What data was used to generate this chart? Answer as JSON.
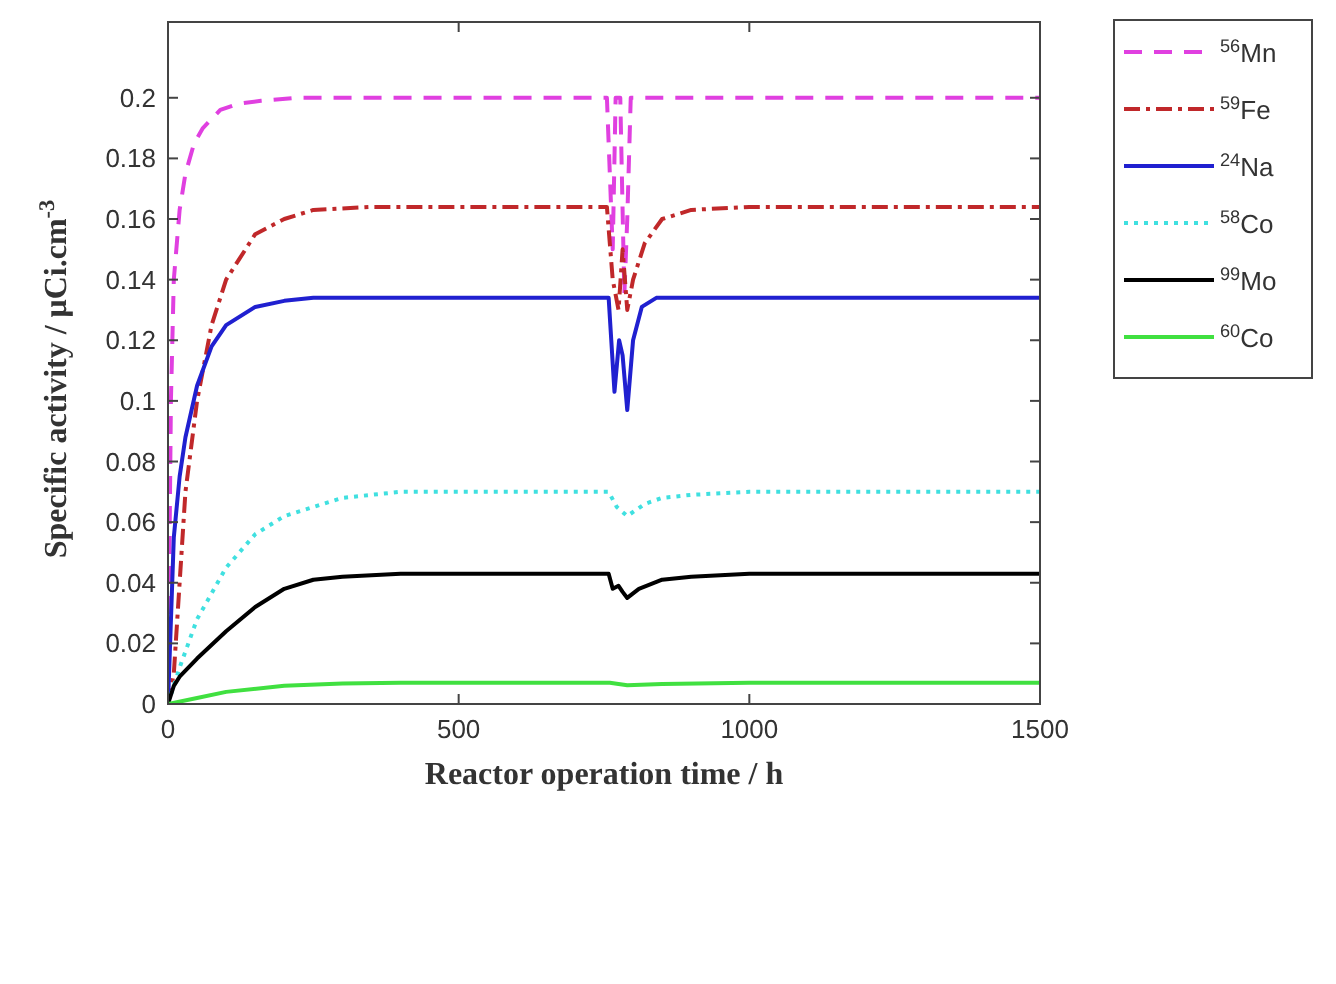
{
  "chart_data": {
    "type": "line",
    "xlabel": "Reactor operation time / h",
    "ylabel": "Specific activity / μCi.cm$^{-3}$",
    "xlim": [
      0,
      1500
    ],
    "xticks": [
      0,
      500,
      1000,
      1500
    ],
    "ylim": [
      0,
      0.225
    ],
    "yticks": [
      0,
      0.02,
      0.04,
      0.06,
      0.08,
      0.1,
      0.12,
      0.14,
      0.16,
      0.18,
      0.2
    ],
    "grid": false,
    "legend": "top right",
    "series": [
      {
        "name": "$^{56}$Mn",
        "color": "#e040e0",
        "line_style": "dashed",
        "x": [
          0,
          5,
          10,
          20,
          30,
          45,
          60,
          90,
          120,
          160,
          220,
          300,
          500,
          755,
          765,
          770,
          778,
          785,
          790,
          796,
          1000,
          1500
        ],
        "values": [
          0,
          0.1,
          0.14,
          0.163,
          0.175,
          0.185,
          0.19,
          0.196,
          0.198,
          0.199,
          0.2,
          0.2,
          0.2,
          0.2,
          0.15,
          0.2,
          0.2,
          0.135,
          0.16,
          0.2,
          0.2,
          0.2
        ]
      },
      {
        "name": "$^{59}$Fe",
        "color": "#c0282a",
        "line_style": "dashdot",
        "x": [
          0,
          10,
          20,
          30,
          50,
          75,
          100,
          150,
          200,
          250,
          350,
          500,
          755,
          765,
          775,
          782,
          790,
          800,
          820,
          850,
          900,
          1000,
          1500
        ],
        "values": [
          0,
          0.01,
          0.04,
          0.07,
          0.1,
          0.125,
          0.14,
          0.155,
          0.16,
          0.163,
          0.164,
          0.164,
          0.164,
          0.14,
          0.13,
          0.15,
          0.13,
          0.14,
          0.152,
          0.16,
          0.163,
          0.164,
          0.164
        ]
      },
      {
        "name": "$^{24}$Na",
        "color": "#2020d0",
        "line_style": "solid",
        "x": [
          0,
          10,
          20,
          30,
          50,
          75,
          100,
          150,
          200,
          250,
          350,
          500,
          758,
          768,
          776,
          782,
          790,
          800,
          815,
          840,
          1000,
          1500
        ],
        "values": [
          0,
          0.055,
          0.075,
          0.088,
          0.105,
          0.118,
          0.125,
          0.131,
          0.133,
          0.134,
          0.134,
          0.134,
          0.134,
          0.103,
          0.12,
          0.115,
          0.097,
          0.12,
          0.131,
          0.134,
          0.134,
          0.134
        ]
      },
      {
        "name": "$^{58}$Co",
        "color": "#40e0e0",
        "line_style": "dotted",
        "x": [
          0,
          20,
          50,
          100,
          150,
          200,
          300,
          400,
          500,
          758,
          772,
          790,
          820,
          850,
          900,
          1000,
          1500
        ],
        "values": [
          0,
          0.012,
          0.028,
          0.045,
          0.056,
          0.062,
          0.068,
          0.07,
          0.07,
          0.07,
          0.065,
          0.062,
          0.066,
          0.068,
          0.069,
          0.07,
          0.07
        ]
      },
      {
        "name": "$^{99}$Mo",
        "color": "#000000",
        "line_style": "solid",
        "x": [
          0,
          10,
          20,
          50,
          100,
          150,
          200,
          250,
          300,
          400,
          500,
          758,
          765,
          775,
          782,
          790,
          810,
          850,
          900,
          1000,
          1500
        ],
        "values": [
          0,
          0.006,
          0.009,
          0.015,
          0.024,
          0.032,
          0.038,
          0.041,
          0.042,
          0.043,
          0.043,
          0.043,
          0.038,
          0.039,
          0.037,
          0.035,
          0.038,
          0.041,
          0.042,
          0.043,
          0.043
        ]
      },
      {
        "name": "$^{60}$Co",
        "color": "#40e040",
        "line_style": "solid",
        "x": [
          0,
          50,
          100,
          200,
          300,
          400,
          500,
          760,
          790,
          850,
          1000,
          1500
        ],
        "values": [
          0,
          0.002,
          0.004,
          0.006,
          0.0068,
          0.007,
          0.007,
          0.007,
          0.0062,
          0.0066,
          0.007,
          0.007
        ]
      }
    ]
  }
}
